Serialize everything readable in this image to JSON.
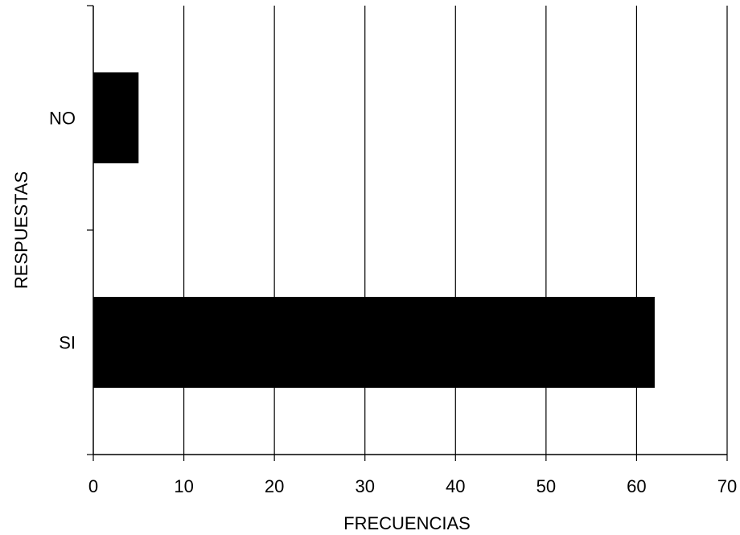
{
  "chart_data": {
    "type": "bar",
    "orientation": "horizontal",
    "categories": [
      "NO",
      "SI"
    ],
    "values": [
      5,
      62
    ],
    "xlabel": "FRECUENCIAS",
    "ylabel": "RESPUESTAS",
    "xlim": [
      0,
      70
    ],
    "xticks": [
      "0",
      "10",
      "20",
      "30",
      "40",
      "50",
      "60",
      "70"
    ],
    "grid": "vertical",
    "legend": "none",
    "bar_color": "#000000"
  }
}
